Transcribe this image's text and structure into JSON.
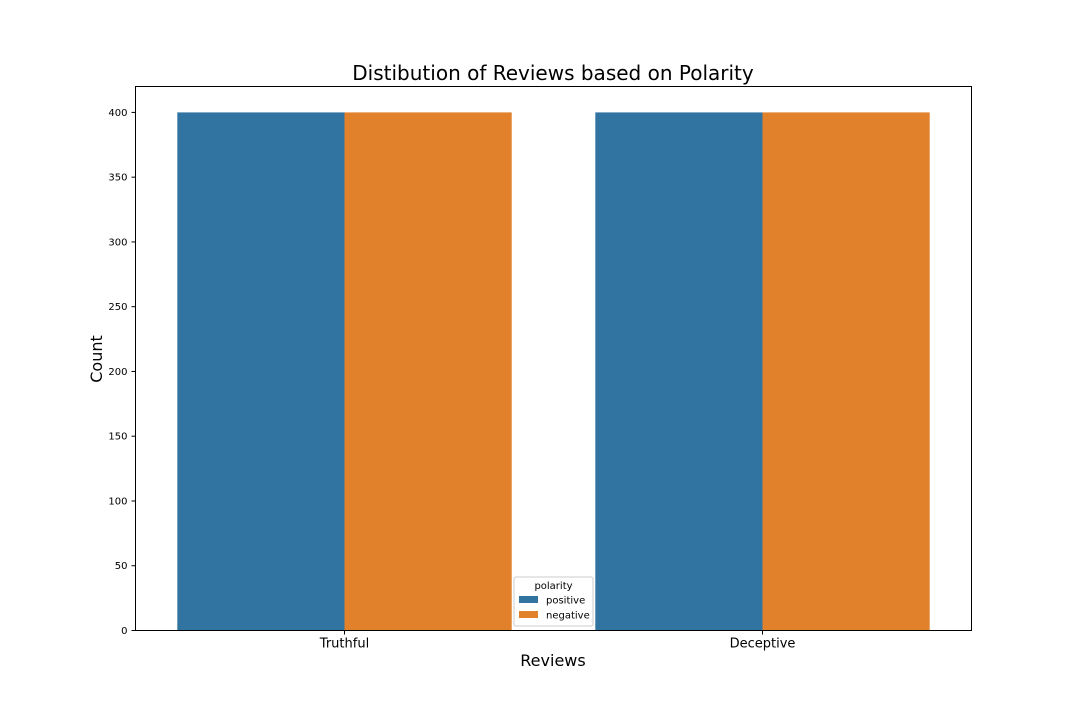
{
  "chart_data": {
    "type": "bar",
    "title": "Distibution of Reviews based on Polarity",
    "xlabel": "Reviews",
    "ylabel": "Count",
    "categories": [
      "Truthful",
      "Deceptive"
    ],
    "series": [
      {
        "name": "positive",
        "values": [
          400,
          400
        ],
        "color": "#3274a1"
      },
      {
        "name": "negative",
        "values": [
          400,
          400
        ],
        "color": "#e1812c"
      }
    ],
    "ylim": [
      0,
      420
    ],
    "yticks": [
      0,
      50,
      100,
      150,
      200,
      250,
      300,
      350,
      400
    ],
    "grid": false,
    "legend": {
      "title": "polarity",
      "placement": "bottom-center"
    }
  }
}
